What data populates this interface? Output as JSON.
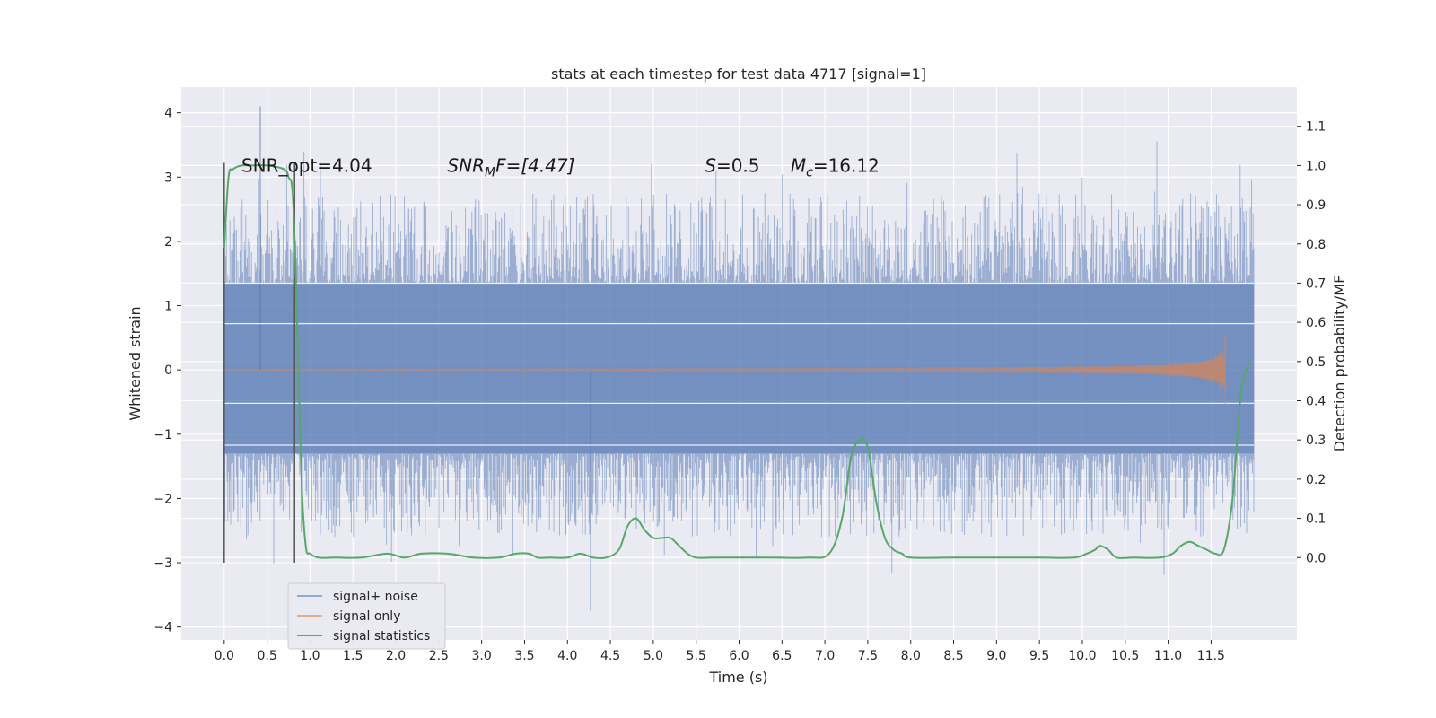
{
  "chart_data": {
    "type": "line",
    "title": "stats at each timestep for test data 4717 [signal=1]",
    "xlabel": "Time (s)",
    "ylabel": "Whitened strain",
    "y2label": "Detection probability/MF",
    "xlim": [
      -0.5,
      12.5
    ],
    "ylim": [
      -4.2,
      4.4
    ],
    "y2lim": [
      -0.21,
      1.2
    ],
    "x_ticks": [
      "0.0",
      "0.5",
      "1.0",
      "1.5",
      "2.0",
      "2.5",
      "3.0",
      "3.5",
      "4.0",
      "4.5",
      "5.0",
      "5.5",
      "6.0",
      "6.5",
      "7.0",
      "7.5",
      "8.0",
      "8.5",
      "9.0",
      "9.5",
      "10.0",
      "10.5",
      "11.0",
      "11.5"
    ],
    "y_ticks": [
      "4",
      "3",
      "2",
      "1",
      "0",
      "−1",
      "−2",
      "−3",
      "−4"
    ],
    "y2_ticks": [
      "1.1",
      "1.0",
      "0.9",
      "0.8",
      "0.7",
      "0.6",
      "0.5",
      "0.4",
      "0.3",
      "0.2",
      "0.1",
      "0.0"
    ],
    "grid": true,
    "legend_position": "lower-left",
    "colors": {
      "background": "#eaeaf2",
      "grid": "#ffffff",
      "noise": "#4c72b0",
      "signal": "#dd8452",
      "stats": "#55a868",
      "marker": "#555555"
    },
    "annotations": [
      {
        "pre": "SNR_opt=4.04",
        "x": 0.2,
        "y": 1.0
      },
      {
        "pre": "SNR",
        "sub": "M",
        "post": "F=[4.47]",
        "italic": true,
        "x": 2.6,
        "y": 1.0
      },
      {
        "pre": "S",
        "post": "=0.5",
        "italic_pre": true,
        "x": 5.6,
        "y": 1.0
      },
      {
        "pre": "M",
        "sub": "c",
        "post": "=16.12",
        "italic_pre": true,
        "x": 6.6,
        "y": 1.0
      }
    ],
    "markers": [
      {
        "x": 0.0
      },
      {
        "x": 0.82
      }
    ],
    "series": [
      {
        "name": "signal+ noise",
        "x_range": [
          0.0,
          12.0
        ],
        "band": [
          -1.3,
          1.35
        ],
        "peak_max": 4.1,
        "peak_min": -3.75
      },
      {
        "name": "signal only",
        "x_range": [
          0.0,
          11.7
        ],
        "chirp_peak_time": 11.67,
        "chirp_max_amplitude": 0.68
      },
      {
        "name": "signal statistics",
        "x": [
          0.0,
          0.05,
          0.1,
          0.2,
          0.3,
          0.5,
          0.7,
          0.75,
          0.8,
          0.85,
          0.9,
          0.95,
          1.0,
          1.1,
          1.3,
          1.6,
          1.9,
          2.1,
          2.3,
          2.6,
          2.9,
          3.2,
          3.4,
          3.55,
          3.65,
          3.8,
          4.0,
          4.15,
          4.3,
          4.45,
          4.6,
          4.7,
          4.8,
          4.9,
          5.0,
          5.1,
          5.2,
          5.3,
          5.4,
          5.5,
          5.7,
          6.0,
          6.4,
          6.8,
          7.05,
          7.2,
          7.3,
          7.4,
          7.5,
          7.6,
          7.7,
          7.8,
          7.9,
          8.0,
          8.5,
          9.0,
          9.5,
          9.9,
          10.05,
          10.15,
          10.2,
          10.3,
          10.4,
          10.6,
          10.9,
          11.05,
          11.15,
          11.25,
          11.35,
          11.45,
          11.55,
          11.65,
          11.75,
          11.85,
          11.95
        ],
        "values": [
          0.79,
          0.97,
          0.99,
          1.0,
          1.0,
          1.0,
          0.99,
          0.97,
          0.92,
          0.6,
          0.2,
          0.03,
          0.01,
          0.0,
          0.0,
          0.0,
          0.01,
          0.0,
          0.01,
          0.01,
          0.0,
          0.0,
          0.01,
          0.01,
          0.0,
          0.0,
          0.0,
          0.01,
          0.0,
          0.0,
          0.02,
          0.08,
          0.1,
          0.07,
          0.05,
          0.05,
          0.05,
          0.03,
          0.01,
          0.0,
          0.0,
          0.0,
          0.0,
          0.0,
          0.01,
          0.1,
          0.25,
          0.3,
          0.28,
          0.14,
          0.05,
          0.02,
          0.01,
          0.0,
          0.0,
          0.0,
          0.0,
          0.0,
          0.01,
          0.02,
          0.03,
          0.02,
          0.0,
          0.0,
          0.0,
          0.01,
          0.03,
          0.04,
          0.03,
          0.02,
          0.01,
          0.02,
          0.15,
          0.42,
          0.5
        ]
      }
    ]
  }
}
